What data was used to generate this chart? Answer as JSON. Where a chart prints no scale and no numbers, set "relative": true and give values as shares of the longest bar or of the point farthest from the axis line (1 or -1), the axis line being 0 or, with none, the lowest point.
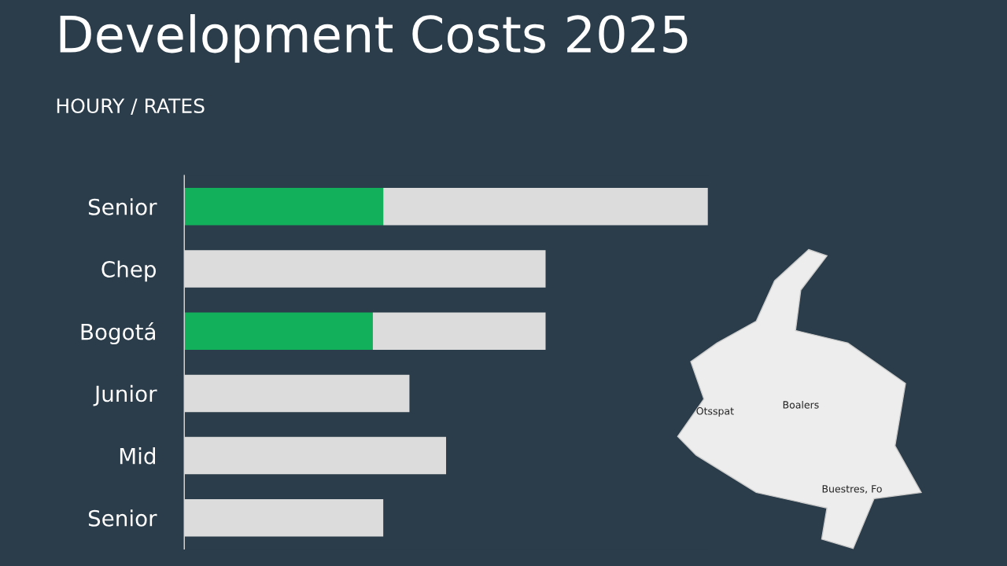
{
  "chart_data": {
    "type": "bar",
    "title": "Development Costs 2025",
    "subtitle": "HOURY / RATES",
    "orientation": "horizontal",
    "stacked": true,
    "relative": true,
    "categories": [
      "Senior",
      "Chep",
      "Bogotá",
      "Junior",
      "Mid",
      "Senior"
    ],
    "series": [
      {
        "color": "#12b05a",
        "values": [
          0.38,
          null,
          0.36,
          null,
          null,
          null
        ]
      },
      {
        "color": "#dcdcdc",
        "values": [
          0.62,
          0.69,
          0.33,
          0.43,
          0.5,
          0.38
        ]
      }
    ],
    "annotations": [
      "Otsspat",
      "Boalers",
      "Buestres, Fo"
    ]
  }
}
